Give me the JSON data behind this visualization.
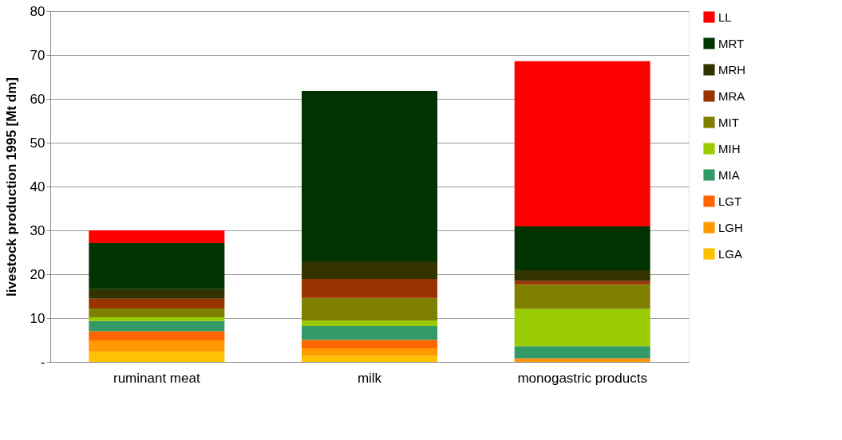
{
  "chart_data": {
    "type": "bar",
    "stacked": true,
    "ylabel": "livestock production 1995 [Mt dm]",
    "categories": [
      "ruminant meat",
      "milk",
      "monogastric products"
    ],
    "series": [
      {
        "name": "LGA",
        "color": "#ffc000",
        "values": [
          2.3,
          1.4,
          0
        ]
      },
      {
        "name": "LGH",
        "color": "#ff9900",
        "values": [
          2.6,
          1.7,
          0.6
        ]
      },
      {
        "name": "LGT",
        "color": "#ff6600",
        "values": [
          2.1,
          1.9,
          0.2
        ]
      },
      {
        "name": "MIA",
        "color": "#339966",
        "values": [
          2.3,
          3.2,
          2.8
        ]
      },
      {
        "name": "MIH",
        "color": "#99cc00",
        "values": [
          0.9,
          1.2,
          8.5
        ]
      },
      {
        "name": "MIT",
        "color": "#808000",
        "values": [
          2.0,
          5.2,
          5.6
        ]
      },
      {
        "name": "MRA",
        "color": "#993300",
        "values": [
          2.2,
          4.3,
          0.8
        ]
      },
      {
        "name": "MRH",
        "color": "#333300",
        "values": [
          2.2,
          4.0,
          2.4
        ]
      },
      {
        "name": "MRT",
        "color": "#003300",
        "values": [
          10.5,
          38.9,
          10.0
        ]
      },
      {
        "name": "LL",
        "color": "#ff0000",
        "values": [
          2.9,
          0,
          37.7
        ]
      }
    ],
    "ylim": [
      0,
      80
    ],
    "yticks": [
      {
        "value": 0,
        "label": "-"
      },
      10,
      20,
      30,
      40,
      50,
      60,
      70,
      80
    ],
    "grid": "y",
    "legend": "right"
  }
}
